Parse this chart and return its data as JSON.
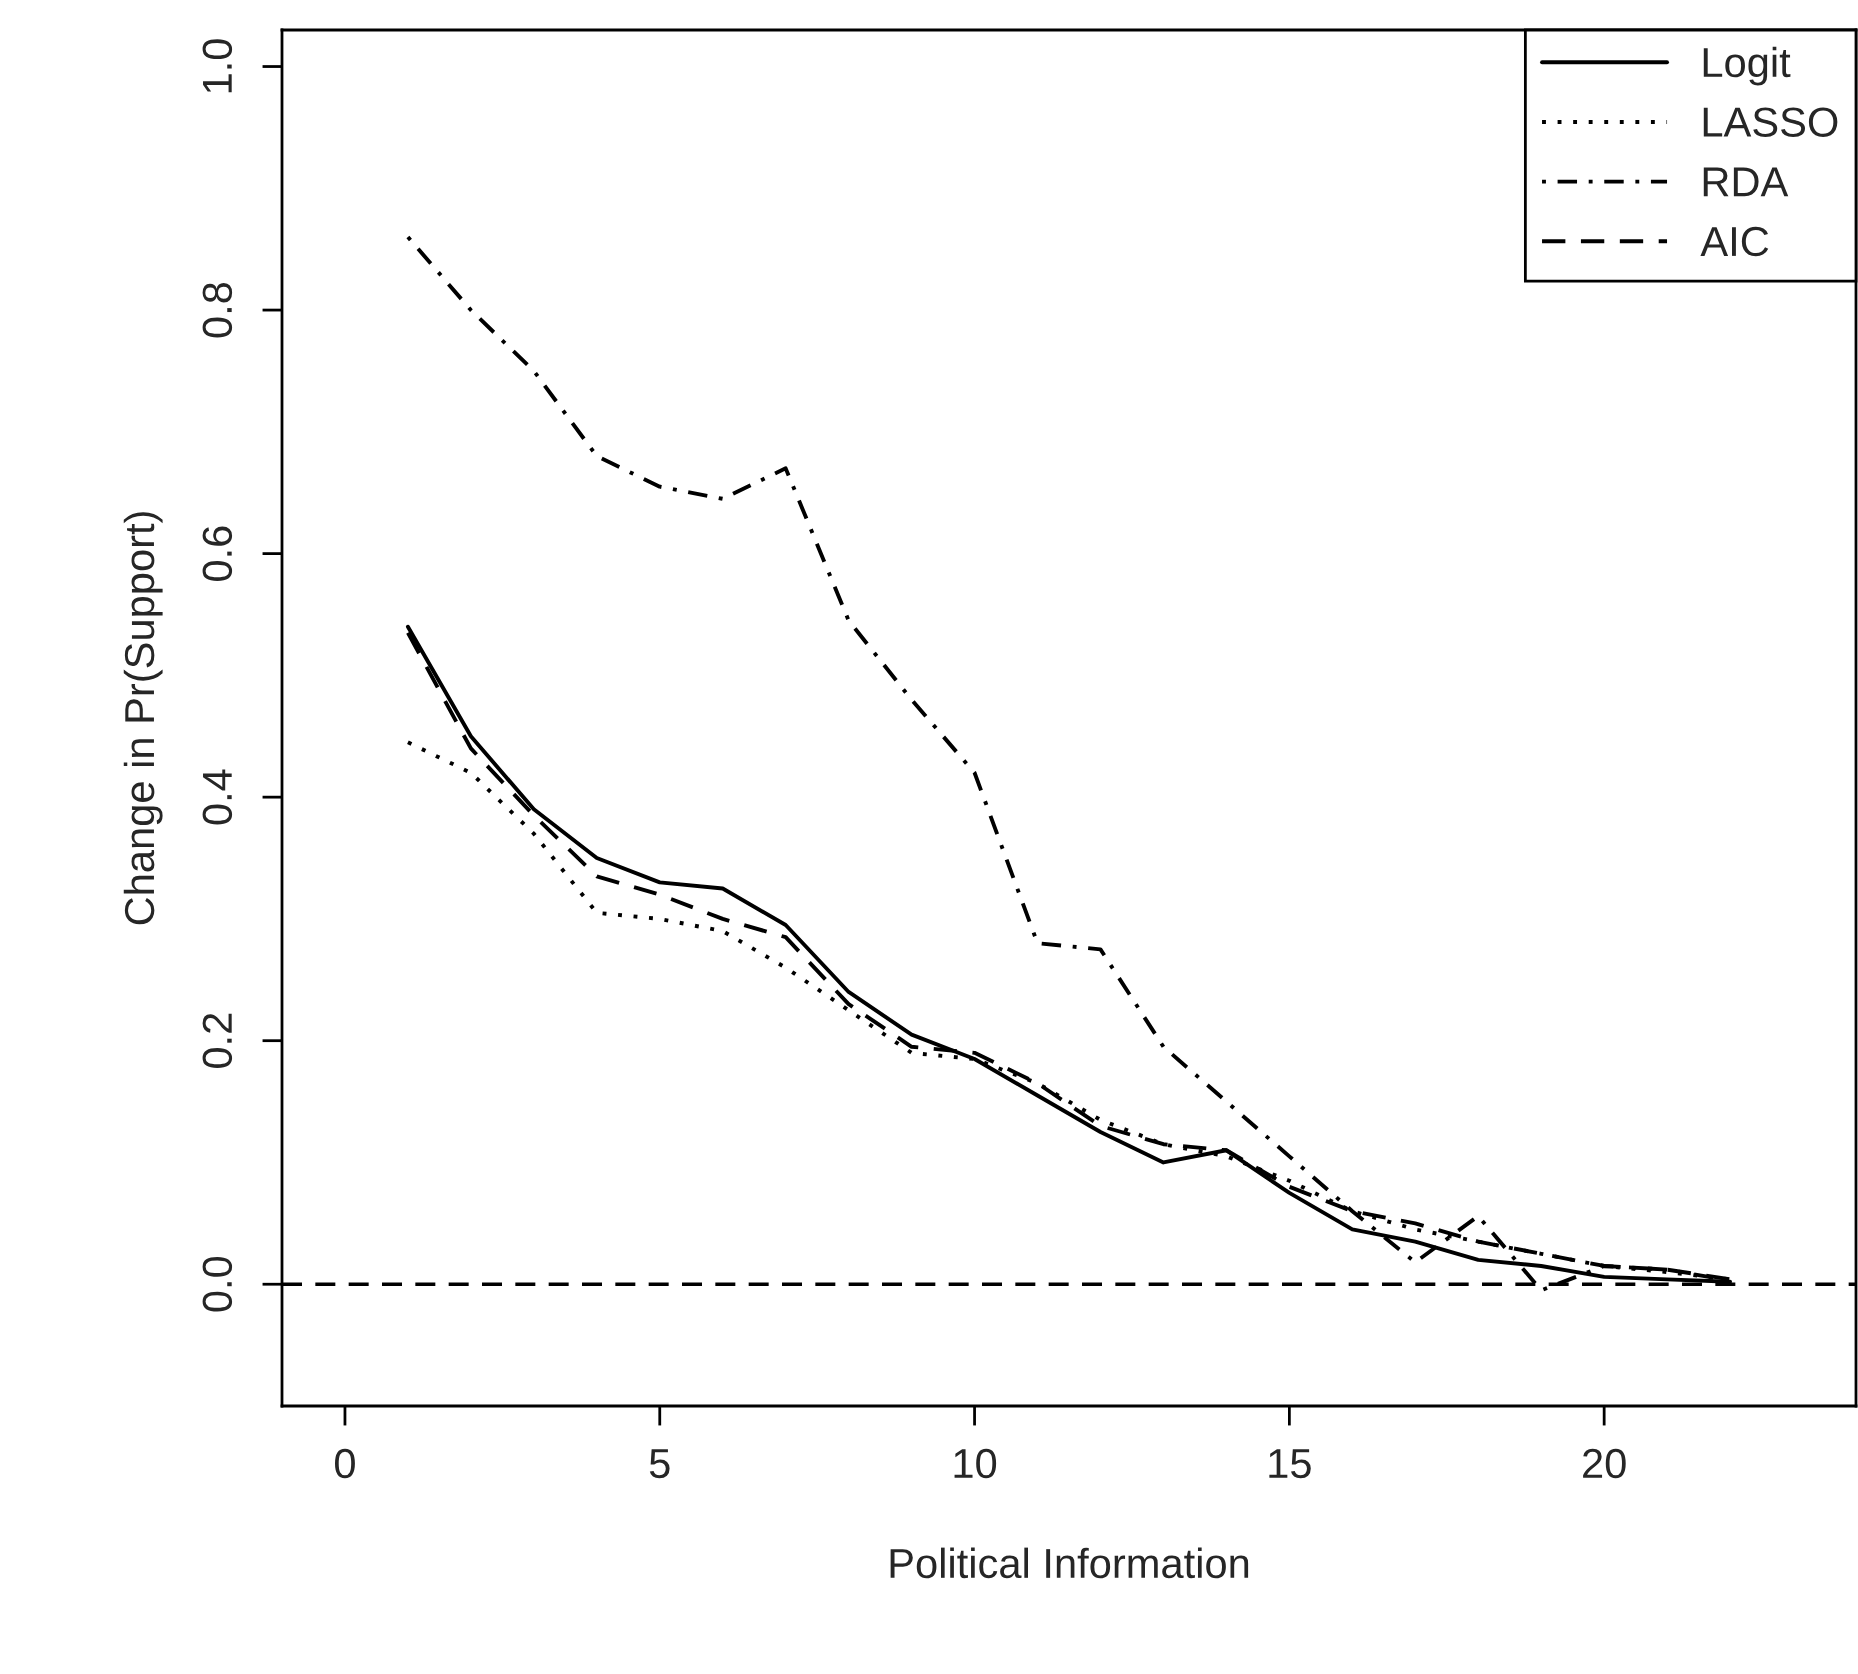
{
  "chart_data": {
    "type": "line",
    "xlabel": "Political Information",
    "ylabel": "Change in Pr(Support)",
    "x": [
      1,
      2,
      3,
      4,
      5,
      6,
      7,
      8,
      9,
      10,
      11,
      12,
      13,
      14,
      15,
      16,
      17,
      18,
      19,
      20,
      21,
      22
    ],
    "series": [
      {
        "name": "Logit",
        "color": "#000000",
        "line_style": "solid",
        "values": [
          0.54,
          0.45,
          0.39,
          0.35,
          0.33,
          0.325,
          0.295,
          0.24,
          0.205,
          0.185,
          0.155,
          0.125,
          0.1,
          0.11,
          0.075,
          0.045,
          0.035,
          0.02,
          0.015,
          0.006,
          0.004,
          0.002
        ]
      },
      {
        "name": "LASSO",
        "color": "#000000",
        "line_style": "dotted",
        "values": [
          0.445,
          0.42,
          0.37,
          0.305,
          0.3,
          0.29,
          0.26,
          0.225,
          0.19,
          0.185,
          0.165,
          0.135,
          0.115,
          0.105,
          0.085,
          0.06,
          0.045,
          0.035,
          0.025,
          0.015,
          0.01,
          0.004
        ]
      },
      {
        "name": "RDA",
        "color": "#000000",
        "line_style": "dashdot",
        "values": [
          0.86,
          0.8,
          0.75,
          0.68,
          0.655,
          0.645,
          0.67,
          0.545,
          0.48,
          0.42,
          0.28,
          0.275,
          0.195,
          0.15,
          0.105,
          0.06,
          0.018,
          0.056,
          -0.005,
          0.015,
          0.012,
          0.003
        ]
      },
      {
        "name": "AIC",
        "color": "#000000",
        "line_style": "dashed",
        "values": [
          0.535,
          0.44,
          0.385,
          0.335,
          0.32,
          0.3,
          0.285,
          0.23,
          0.195,
          0.19,
          0.165,
          0.13,
          0.115,
          0.11,
          0.08,
          0.06,
          0.05,
          0.035,
          0.025,
          0.015,
          0.012,
          0.004
        ]
      }
    ],
    "xlim": [
      -1,
      24
    ],
    "ylim": [
      -0.1,
      1.03
    ],
    "xticks": [
      0,
      5,
      10,
      15,
      20
    ],
    "yticks": [
      {
        "value": 0,
        "label": "0.0"
      },
      {
        "value": 0.2,
        "label": "0.2"
      },
      {
        "value": 0.4,
        "label": "0.4"
      },
      {
        "value": 0.6,
        "label": "0.6"
      },
      {
        "value": 0.8,
        "label": "0.8"
      },
      {
        "value": 1.0,
        "label": "1.0"
      }
    ],
    "ref_lines": [
      {
        "axis": "y",
        "value": 0,
        "color": "#000000",
        "line_style": "dashed"
      }
    ],
    "grid": false,
    "legend": "top right"
  }
}
